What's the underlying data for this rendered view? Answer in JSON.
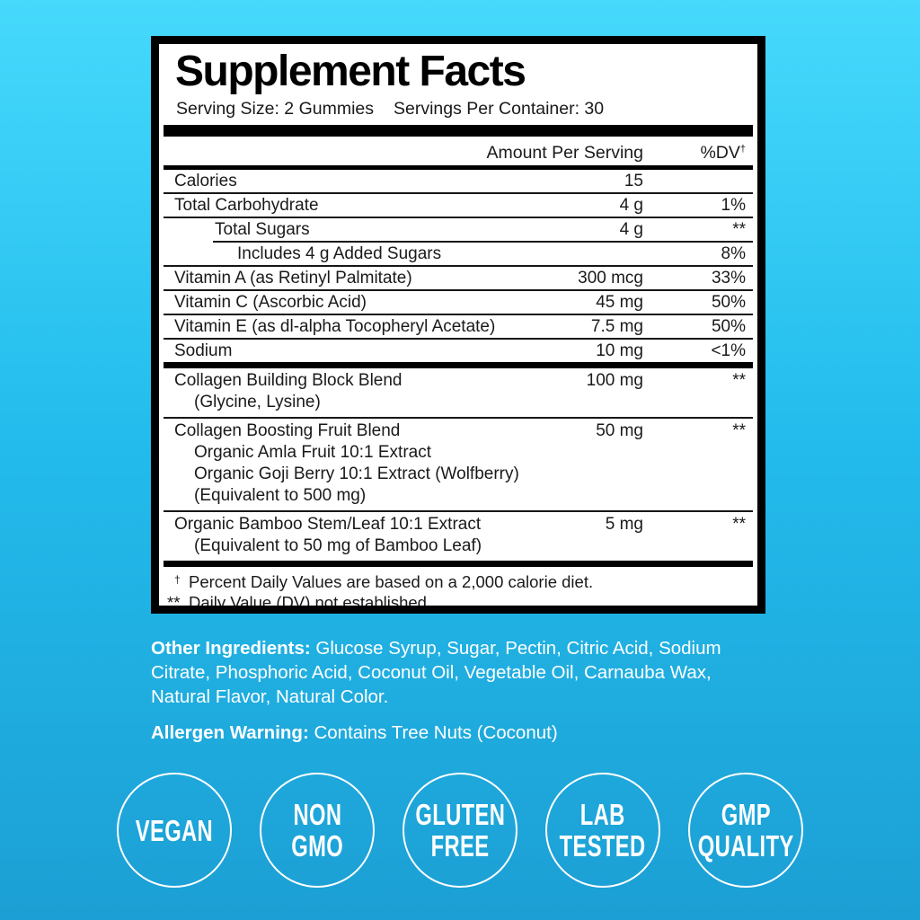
{
  "colors": {
    "bg_top": "#46D9FC",
    "bg_mid": "#23BCEC",
    "bg_bottom": "#1C9FD4",
    "panel_bg": "#FFFFFF",
    "ink": "#000000",
    "text_light": "#FFFFFF"
  },
  "panel": {
    "title": "Supplement Facts",
    "serving_size": "Serving Size: 2 Gummies",
    "servings_per_container": "Servings Per Container: 30",
    "header": {
      "amount": "Amount Per Serving",
      "dv": "%DV",
      "dv_sup": "†"
    },
    "rows": [
      {
        "name": "Calories",
        "amount": "15",
        "dv": ""
      },
      {
        "name": "Total Carbohydrate",
        "amount": "4 g",
        "dv": "1%"
      },
      {
        "name": "Total Sugars",
        "amount": "4 g",
        "dv": "**"
      },
      {
        "name": "Includes 4 g Added Sugars",
        "amount": "",
        "dv": "8%"
      },
      {
        "name": "Vitamin A (as Retinyl Palmitate)",
        "amount": "300 mcg",
        "dv": "33%"
      },
      {
        "name": "Vitamin C (Ascorbic Acid)",
        "amount": "45 mg",
        "dv": "50%"
      },
      {
        "name": "Vitamin E (as dl-alpha Tocopheryl Acetate)",
        "amount": "7.5 mg",
        "dv": "50%"
      },
      {
        "name": "Sodium",
        "amount": "10 mg",
        "dv": "<1%"
      }
    ],
    "blends": [
      {
        "name": "Collagen Building Block Blend",
        "amount": "100 mg",
        "dv": "**",
        "sublines": [
          "(Glycine, Lysine)"
        ]
      },
      {
        "name": "Collagen Boosting Fruit Blend",
        "amount": "50 mg",
        "dv": "**",
        "sublines": [
          "Organic Amla Fruit 10:1 Extract",
          "Organic Goji Berry 10:1 Extract (Wolfberry)",
          "(Equivalent to 500 mg)"
        ]
      },
      {
        "name": "Organic Bamboo Stem/Leaf 10:1 Extract",
        "amount": "5 mg",
        "dv": "**",
        "sublines": [
          "(Equivalent to 50 mg of Bamboo Leaf)"
        ]
      }
    ],
    "footnotes": [
      {
        "marker": "†",
        "text": "Percent Daily Values are based on a 2,000 calorie diet."
      },
      {
        "marker": "**",
        "text": "Daily Value (DV) not established."
      }
    ]
  },
  "below": {
    "other_ingredients_label": "Other Ingredients:",
    "other_ingredients_text": " Glucose Syrup, Sugar, Pectin, Citric Acid, Sodium Citrate, Phosphoric Acid, Coconut Oil, Vegetable Oil, Carnauba Wax, Natural Flavor, Natural Color.",
    "allergen_label": "Allergen Warning:",
    "allergen_text": " Contains Tree Nuts (Coconut)"
  },
  "badges": [
    {
      "lines": [
        "VEGAN"
      ]
    },
    {
      "lines": [
        "NON",
        "GMO"
      ]
    },
    {
      "lines": [
        "GLUTEN",
        "FREE"
      ]
    },
    {
      "lines": [
        "LAB",
        "TESTED"
      ]
    },
    {
      "lines": [
        "GMP",
        "QUALITY"
      ]
    }
  ]
}
